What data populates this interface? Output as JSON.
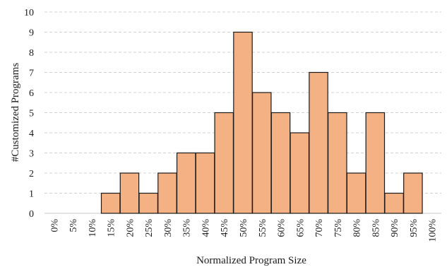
{
  "chart_data": {
    "type": "bar",
    "xlabel": "Normalized Program Size",
    "ylabel": "#Customized Programs",
    "ylim": [
      0,
      10
    ],
    "yticks": [
      "0",
      "1",
      "2",
      "3",
      "4",
      "5",
      "6",
      "7",
      "8",
      "9",
      "10"
    ],
    "categories": [
      "0%",
      "5%",
      "10%",
      "15%",
      "20%",
      "25%",
      "30%",
      "35%",
      "40%",
      "45%",
      "50%",
      "55%",
      "60%",
      "65%",
      "70%",
      "75%",
      "80%",
      "85%",
      "90%",
      "95%",
      "100%"
    ],
    "values": [
      0,
      0,
      0,
      1,
      2,
      1,
      2,
      3,
      3,
      5,
      9,
      6,
      5,
      4,
      7,
      5,
      2,
      5,
      1,
      2,
      0
    ],
    "grid": true,
    "legend": "none",
    "bar_color": "#f4b183",
    "bar_edge_color": "#1a1a1a",
    "grid_color": "#d0d0d0"
  }
}
